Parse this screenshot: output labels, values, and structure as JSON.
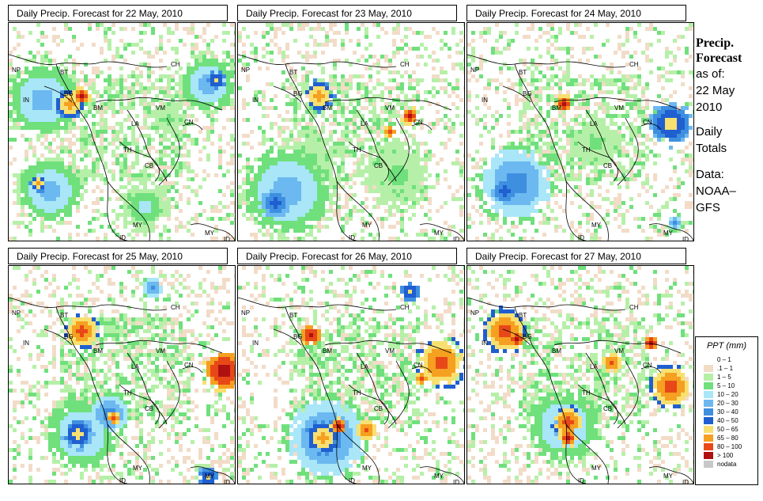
{
  "panels": [
    {
      "title": "Daily Precip. Forecast for  22 May, 2010"
    },
    {
      "title": "Daily Precip. Forecast for  23 May, 2010"
    },
    {
      "title": "Daily Precip. Forecast for  24 May, 2010"
    },
    {
      "title": "Daily Precip. Forecast for  25 May, 2010"
    },
    {
      "title": "Daily Precip. Forecast for  26 May, 2010"
    },
    {
      "title": "Daily Precip. Forecast for  27 May, 2010"
    }
  ],
  "map_labels": {
    "ch": "CH",
    "np": "NP",
    "bt": "BT",
    "in": "IN",
    "bg": "BG",
    "bm": "BM",
    "vm": "VM",
    "la": "LA",
    "cn": "CN",
    "th": "TH",
    "cb": "CB",
    "my_w": "MY",
    "my_e": "MY",
    "id_w": "ID",
    "id_e": "ID"
  },
  "sidebar": {
    "title_line1": "Precip.",
    "title_line2": "Forecast",
    "asof_line1": "as of:",
    "asof_line2": "22 May",
    "asof_line3": "2010",
    "totals_line1": "Daily",
    "totals_line2": "Totals",
    "data_line1": "Data:",
    "data_line2": "NOAA–",
    "data_line3": "GFS"
  },
  "legend": {
    "title": "PPT (mm)",
    "items": [
      {
        "label": "0 – 1",
        "color": "#ffffff"
      },
      {
        "label": ".1 – 1",
        "color": "#f2dcc8"
      },
      {
        "label": "1 – 5",
        "color": "#b6f0a8"
      },
      {
        "label": "5 – 10",
        "color": "#6fe07c"
      },
      {
        "label": "10 – 20",
        "color": "#a8e6f8"
      },
      {
        "label": "20 – 30",
        "color": "#6cb8f0"
      },
      {
        "label": "30 – 40",
        "color": "#3f8fe0"
      },
      {
        "label": "40 – 50",
        "color": "#1f5fd0"
      },
      {
        "label": "50 – 65",
        "color": "#f8e070"
      },
      {
        "label": "65 – 80",
        "color": "#f5a020"
      },
      {
        "label": "80 – 100",
        "color": "#e84818"
      },
      {
        "label": "> 100",
        "color": "#b01010"
      },
      {
        "label": "nodata",
        "color": "#c8c8c8"
      }
    ]
  }
}
